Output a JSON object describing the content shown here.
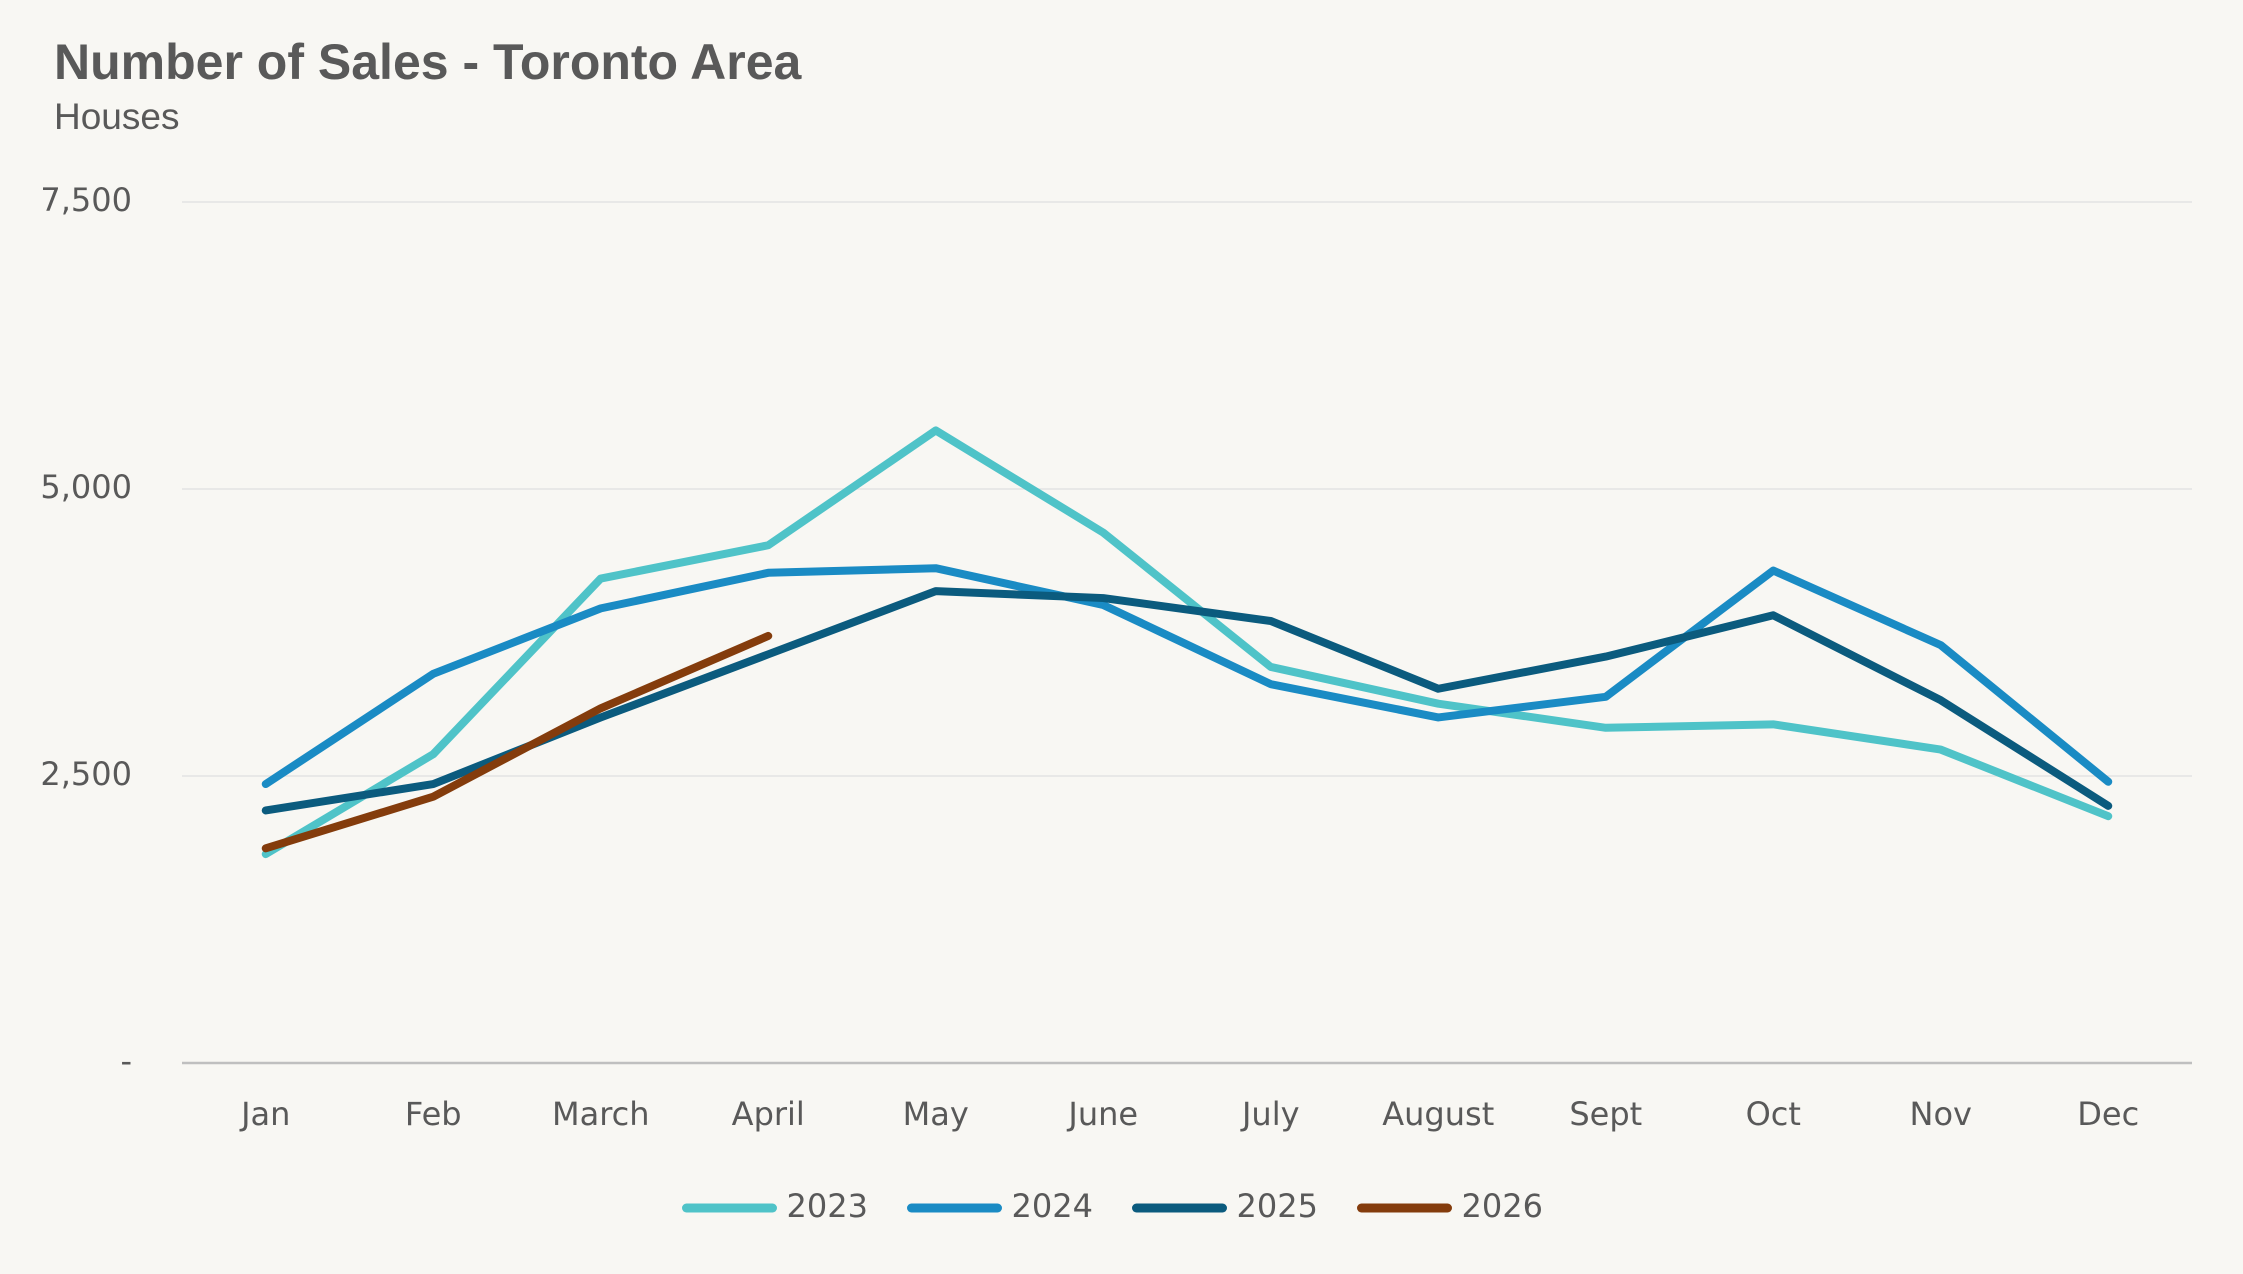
{
  "chart_data": {
    "type": "line",
    "title": "Number of Sales - Toronto Area",
    "subtitle": "Houses",
    "categories": [
      "Jan",
      "Feb",
      "March",
      "April",
      "May",
      "June",
      "July",
      "August",
      "Sept",
      "Oct",
      "Nov",
      "Dec"
    ],
    "series": [
      {
        "name": "2023",
        "color": "#4fc3c8",
        "values": [
          1820,
          2690,
          4220,
          4510,
          5510,
          4620,
          3450,
          3130,
          2920,
          2950,
          2730,
          2150
        ]
      },
      {
        "name": "2024",
        "color": "#1a8bc4",
        "values": [
          2430,
          3390,
          3960,
          4270,
          4310,
          3990,
          3300,
          3010,
          3190,
          4290,
          3640,
          2450
        ]
      },
      {
        "name": "2025",
        "color": "#0b5b7e",
        "values": [
          2200,
          2430,
          3010,
          3560,
          4110,
          4050,
          3850,
          3260,
          3540,
          3900,
          3160,
          2240
        ]
      },
      {
        "name": "2026",
        "color": "#843c0c",
        "values": [
          1870,
          2320,
          3090,
          3720,
          null,
          null,
          null,
          null,
          null,
          null,
          null,
          null
        ]
      }
    ],
    "ylim": [
      0,
      7500
    ],
    "yticks": [
      {
        "value": 0,
        "label": "-"
      },
      {
        "value": 2500,
        "label": "2,500"
      },
      {
        "value": 5000,
        "label": "5,000"
      },
      {
        "value": 7500,
        "label": "7,500"
      }
    ],
    "grid": true,
    "legend": "bottom"
  }
}
